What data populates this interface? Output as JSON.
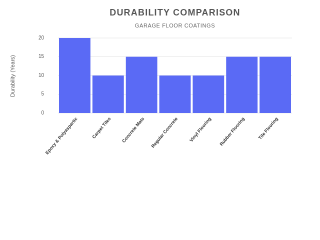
{
  "chart_data": {
    "type": "bar",
    "title": "DURABILITY COMPARISON",
    "subtitle": "GARAGE FLOOR COATINGS",
    "y_label": "Durability (Years)",
    "categories": [
      "Epoxy & Polyaspartic",
      "Carpet Tiles",
      "Concrete Mats",
      "Regular Concrete",
      "Vinyl Flooring",
      "Rubber Flooring",
      "Tile Flooring"
    ],
    "values": [
      20,
      10,
      15,
      10,
      10,
      15,
      15
    ],
    "color": "#5a6af5",
    "ylim": [
      0,
      20
    ],
    "yticks": [
      0,
      5,
      10,
      15,
      20
    ],
    "grid": true
  }
}
